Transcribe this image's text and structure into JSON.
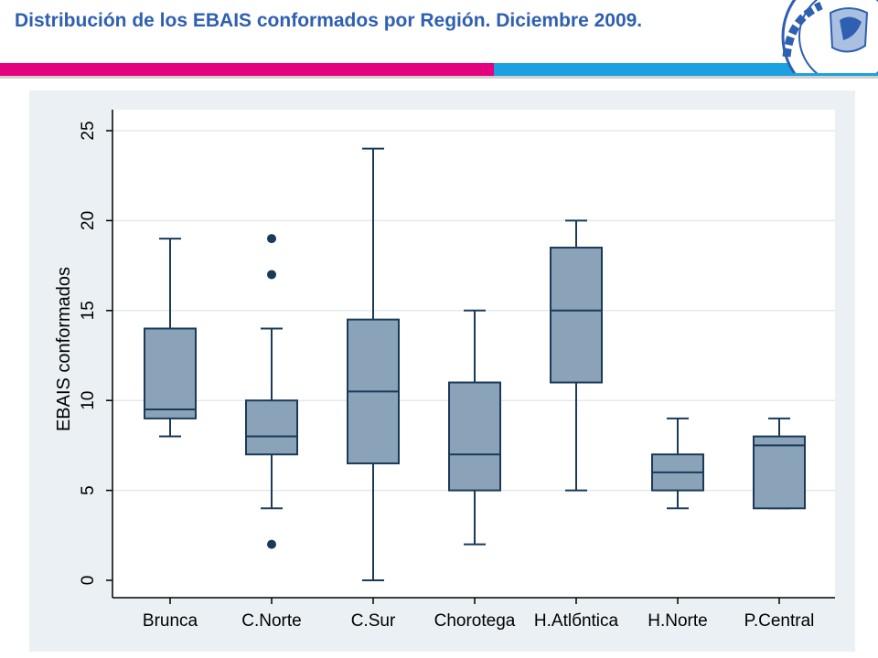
{
  "slide": {
    "title": "Distribución de los EBAIS conformados por Región. Diciembre 2009."
  },
  "colors": {
    "title": "#2e5fb0",
    "bar_left": "#e4007e",
    "bar_right": "#1ba1e2",
    "panel_bg": "#eaf0f3",
    "plot_bg": "#ffffff",
    "box_fill": "#8aa3b9",
    "box_stroke": "#1b3a59"
  },
  "chart_data": {
    "type": "box",
    "title": "",
    "xlabel": "",
    "ylabel": "EBAIS conformados",
    "ylim": [
      0,
      25
    ],
    "yticks": [
      0,
      5,
      10,
      15,
      20,
      25
    ],
    "grid": true,
    "categories": [
      "Brunca",
      "C.Norte",
      "C.Sur",
      "Chorotega",
      "H.Atlбntica",
      "H.Norte",
      "P.Central"
    ],
    "boxes": [
      {
        "category": "Brunca",
        "whisker_low": 8,
        "q1": 9,
        "median": 9.5,
        "q3": 14,
        "whisker_high": 19,
        "outliers": []
      },
      {
        "category": "C.Norte",
        "whisker_low": 4,
        "q1": 7,
        "median": 8,
        "q3": 10,
        "whisker_high": 14,
        "outliers": [
          2,
          17,
          19
        ]
      },
      {
        "category": "C.Sur",
        "whisker_low": 0,
        "q1": 6.5,
        "median": 10.5,
        "q3": 14.5,
        "whisker_high": 24,
        "outliers": []
      },
      {
        "category": "Chorotega",
        "whisker_low": 2,
        "q1": 5,
        "median": 7,
        "q3": 11,
        "whisker_high": 15,
        "outliers": []
      },
      {
        "category": "H.Atlбntica",
        "whisker_low": 5,
        "q1": 11,
        "median": 15,
        "q3": 18.5,
        "whisker_high": 20,
        "outliers": []
      },
      {
        "category": "H.Norte",
        "whisker_low": 4,
        "q1": 5,
        "median": 6,
        "q3": 7,
        "whisker_high": 9,
        "outliers": []
      },
      {
        "category": "P.Central",
        "whisker_low": 4,
        "q1": 4,
        "median": 7.5,
        "q3": 8,
        "whisker_high": 9,
        "outliers": []
      }
    ]
  }
}
